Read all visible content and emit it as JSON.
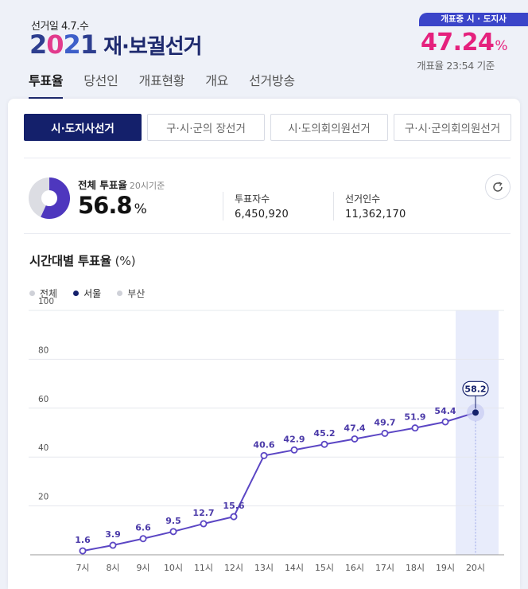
{
  "header": {
    "date_label": "선거일 4.7.수",
    "logo_year": [
      "2",
      "0",
      "2",
      "1"
    ],
    "logo_title": "재·보궐선거",
    "count_badge": "개표중 시 · 도지사",
    "count_percent": "47.24",
    "count_percent_unit": "%",
    "count_time": "개표율 23:54 기준"
  },
  "nav": {
    "items": [
      "투표율",
      "당선인",
      "개표현황",
      "개요",
      "선거방송"
    ],
    "active_index": 0
  },
  "subtabs": {
    "items": [
      "시·도지사선거",
      "구·시·군의 장선거",
      "시·도의회의원선거",
      "구·시·군의회의원선거"
    ],
    "active_index": 0
  },
  "turnout": {
    "label": "전체 투표율",
    "label_sub": "20시기준",
    "value": "56.8",
    "value_unit": "%",
    "value_fraction": 0.568,
    "voters_label": "투표자수",
    "voters_value": "6,450,920",
    "electors_label": "선거인수",
    "electors_value": "11,362,170"
  },
  "chart_title": {
    "main": "시간대별 투표율",
    "unit": "(%)"
  },
  "colors": {
    "accent_navy": "#14206b",
    "accent_pink": "#e5217d",
    "line_purple": "#5b46c4",
    "donut_fill": "#4e37be",
    "donut_rest": "#dcdde3",
    "highlight_bg": "#e8ecfb"
  },
  "chart_data": {
    "type": "line",
    "title": "시간대별 투표율",
    "ylabel": "(%)",
    "categories": [
      "7시",
      "8시",
      "9시",
      "10시",
      "11시",
      "12시",
      "13시",
      "14시",
      "15시",
      "16시",
      "17시",
      "18시",
      "19시",
      "20시"
    ],
    "series": [
      {
        "name": "서울",
        "values": [
          1.6,
          3.9,
          6.6,
          9.5,
          12.7,
          15.6,
          40.6,
          42.9,
          45.2,
          47.4,
          49.7,
          51.9,
          54.4,
          58.2
        ]
      }
    ],
    "legend": [
      {
        "name": "전체",
        "color": "#cfd1d8",
        "active": false
      },
      {
        "name": "서울",
        "color": "#14206b",
        "active": true
      },
      {
        "name": "부산",
        "color": "#cfd1d8",
        "active": false
      }
    ],
    "yticks": [
      "100",
      "80",
      "60",
      "40",
      "20"
    ],
    "ylim": [
      0,
      100
    ],
    "highlight_index": 13,
    "grid": true,
    "legend_position": "top-left"
  }
}
